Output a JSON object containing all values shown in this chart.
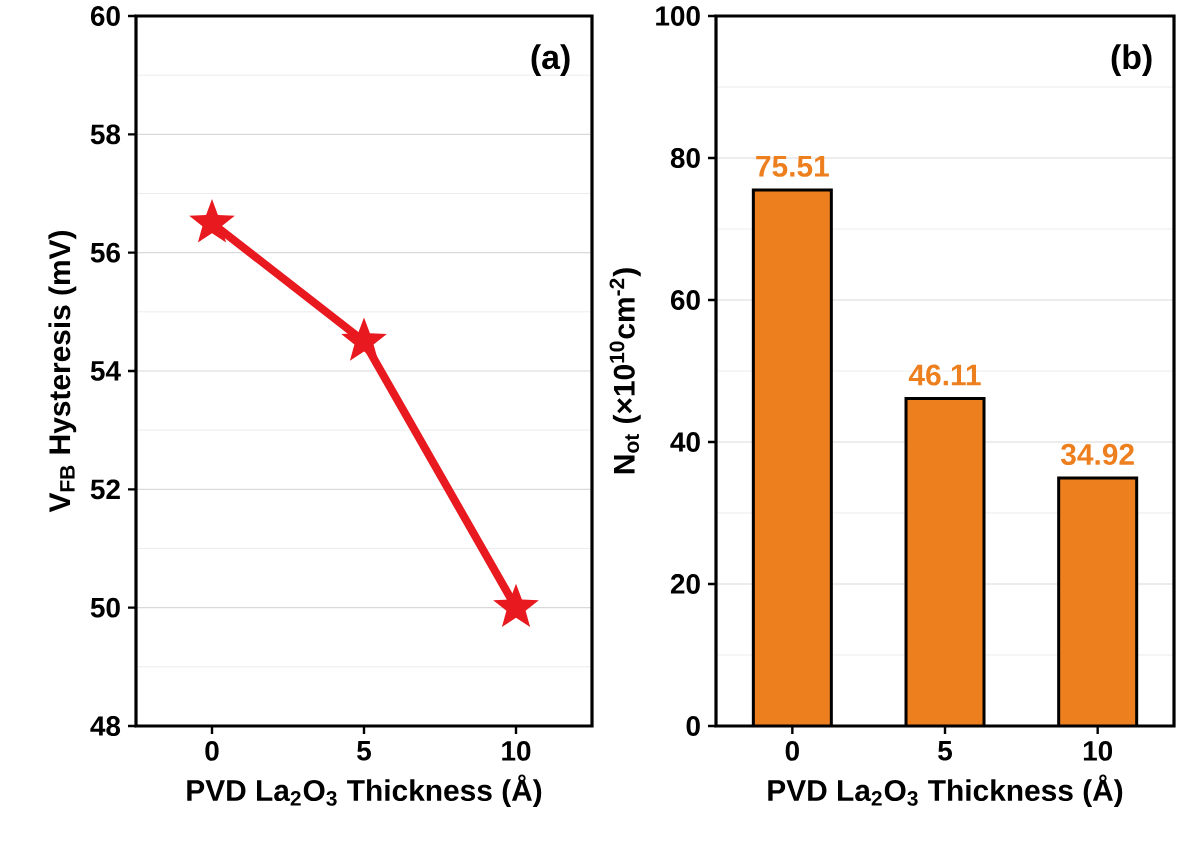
{
  "chart_data": [
    {
      "type": "line",
      "x": [
        0,
        5,
        10
      ],
      "values": [
        56.5,
        54.5,
        50.0
      ],
      "color": "#e8191f",
      "marker": "star",
      "line_style": "solid",
      "xlim": [
        -2.5,
        12.5
      ],
      "xticks": [
        0,
        5,
        10
      ],
      "ylim": [
        48,
        60
      ],
      "yticks": [
        48,
        50,
        52,
        54,
        56,
        58,
        60
      ],
      "grid": "y",
      "xlabel": "PVD La$_{2}$O$_{3}$ Thickness (Å)",
      "ylabel": "V$_{FB}$ Hysteresis (mV)",
      "annotations": [
        "(a)"
      ]
    },
    {
      "type": "bar",
      "categories": [
        "0",
        "5",
        "10"
      ],
      "values": [
        75.51,
        46.11,
        34.92
      ],
      "color": "#ee7f1e",
      "data_labels": true,
      "ylim": [
        0,
        100
      ],
      "yticks": [
        0,
        20,
        40,
        60,
        80,
        100
      ],
      "grid": "y",
      "xlabel": "PVD La$_{2}$O$_{3}$ Thickness (Å)",
      "ylabel": "N$_{ot}$ (×10$^{10}$cm$^{-2}$)",
      "annotations": [
        "(b)"
      ]
    }
  ]
}
